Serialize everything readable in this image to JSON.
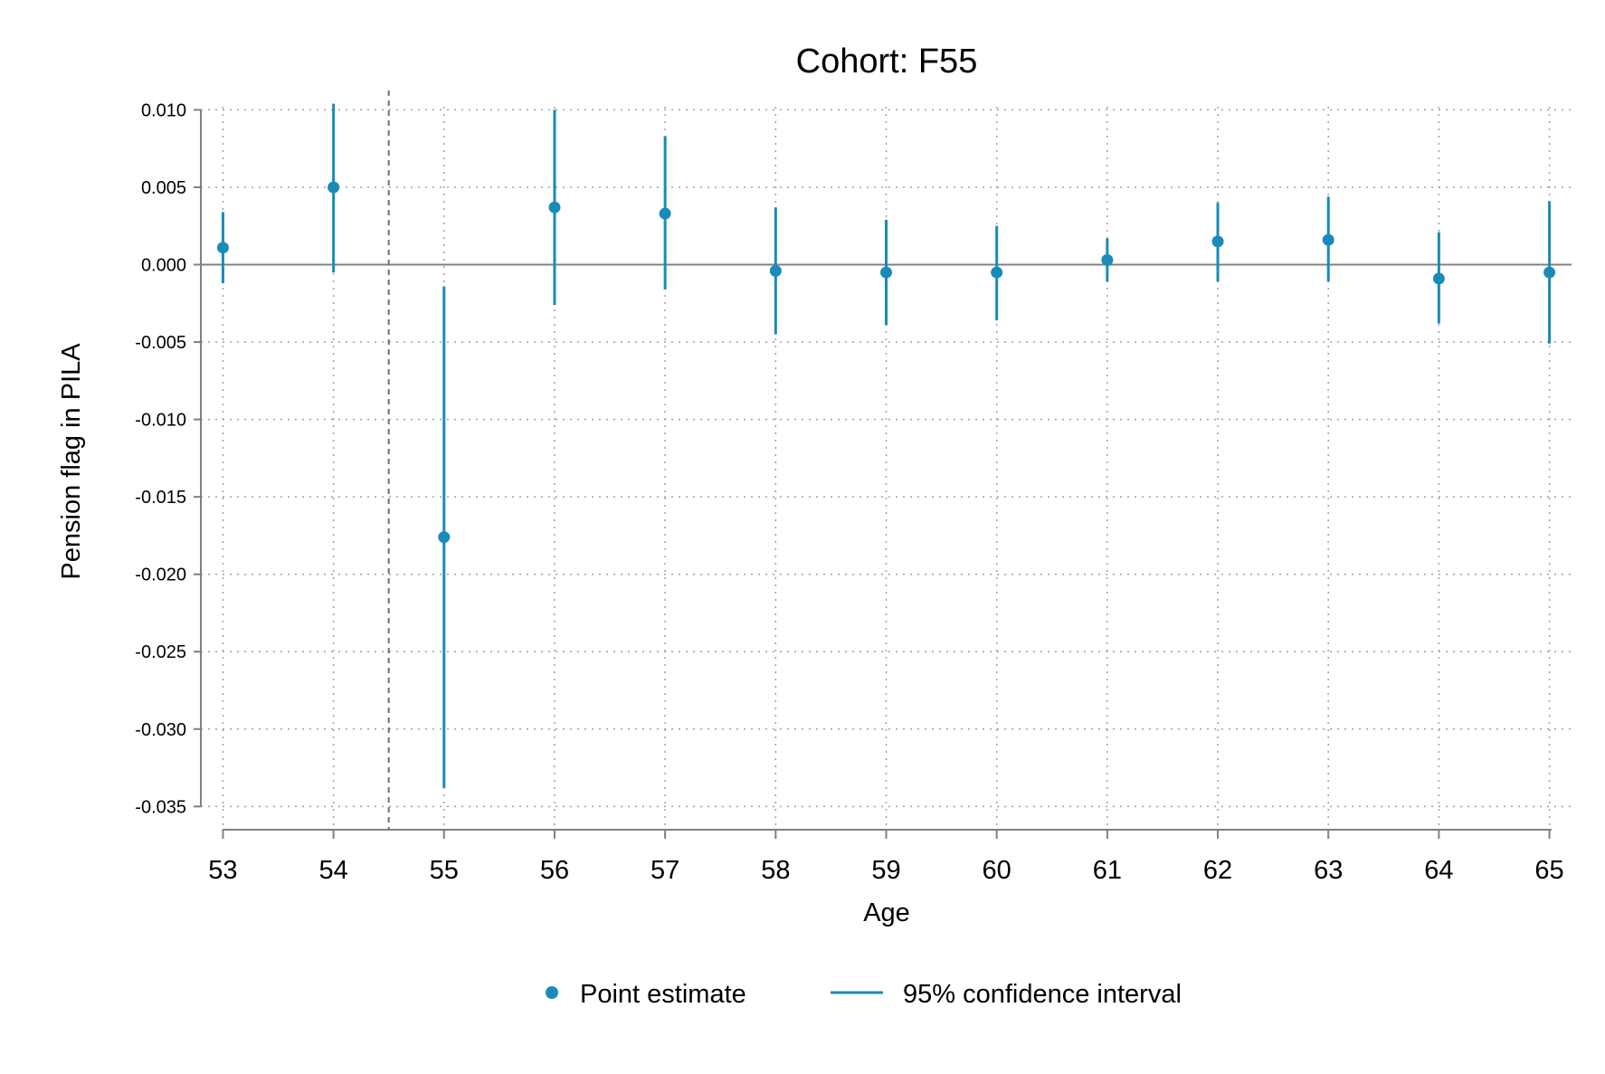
{
  "chart_data": {
    "type": "scatter",
    "title": "Cohort: F55",
    "xlabel": "Age",
    "ylabel": "Pension flag in PILA",
    "x_ticks": [
      53,
      54,
      55,
      56,
      57,
      58,
      59,
      60,
      61,
      62,
      63,
      64,
      65
    ],
    "y_ticks": [
      "0.010",
      "0.005",
      "0.000",
      "-0.005",
      "-0.010",
      "-0.015",
      "-0.020",
      "-0.025",
      "-0.030",
      "-0.035"
    ],
    "xlim": [
      52.8,
      65.2
    ],
    "ylim": [
      -0.0365,
      0.0102
    ],
    "grid": true,
    "reference_line_y": 0,
    "reference_line_x": 54.5,
    "legend_position": "bottom",
    "colors": {
      "series": "#1a8bb9",
      "axis": "#808080",
      "grid": "#a0a0a0",
      "ref": "#707070"
    },
    "series": [
      {
        "name": "Point estimate",
        "x": [
          53,
          54,
          55,
          56,
          57,
          58,
          59,
          60,
          61,
          62,
          63,
          64,
          65
        ],
        "y": [
          0.0011,
          0.005,
          -0.0176,
          0.0037,
          0.0033,
          -0.0004,
          -0.0005,
          -0.0005,
          0.0003,
          0.0015,
          0.0016,
          -0.0009,
          -0.0005
        ]
      },
      {
        "name": "95% confidence interval",
        "lower": [
          -0.0012,
          -0.0005,
          -0.0338,
          -0.0026,
          -0.0016,
          -0.0045,
          -0.0039,
          -0.0036,
          -0.0011,
          -0.0011,
          -0.0011,
          -0.0038,
          -0.0051
        ],
        "upper": [
          0.0034,
          0.0104,
          -0.0014,
          0.01,
          0.0083,
          0.0037,
          0.0029,
          0.0025,
          0.0017,
          0.004,
          0.0044,
          0.0021,
          0.0041
        ]
      }
    ]
  }
}
